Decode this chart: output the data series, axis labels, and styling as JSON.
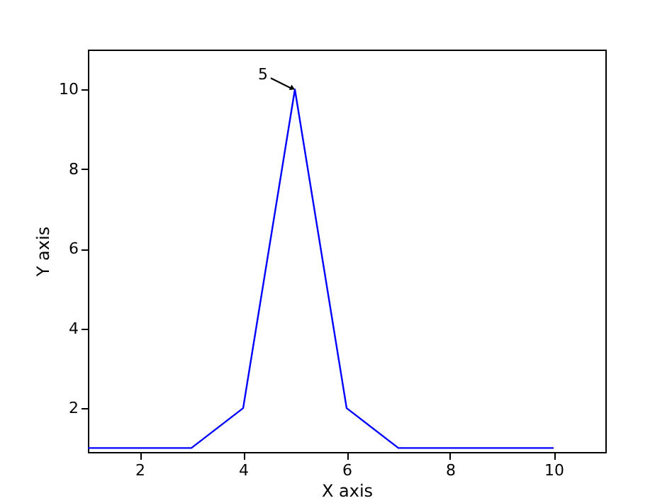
{
  "chart_data": {
    "type": "line",
    "xlabel": "X axis",
    "ylabel": "Y axis",
    "x": [
      1,
      2,
      3,
      4,
      5,
      6,
      7,
      8,
      9,
      10
    ],
    "series": [
      {
        "color": "#0000ff",
        "values": [
          1,
          1,
          1,
          2,
          10,
          2,
          1,
          1,
          1,
          1
        ]
      }
    ],
    "xlim": [
      1,
      11
    ],
    "xticks": [
      2,
      4,
      6,
      8,
      10
    ],
    "ylim": [
      0.9,
      11
    ],
    "yticks": [
      2,
      4,
      6,
      8,
      10
    ],
    "annotations": [
      {
        "text": "5",
        "x": 5,
        "y": 10
      }
    ],
    "grid": false,
    "marker": "none",
    "line_style": "solid"
  }
}
